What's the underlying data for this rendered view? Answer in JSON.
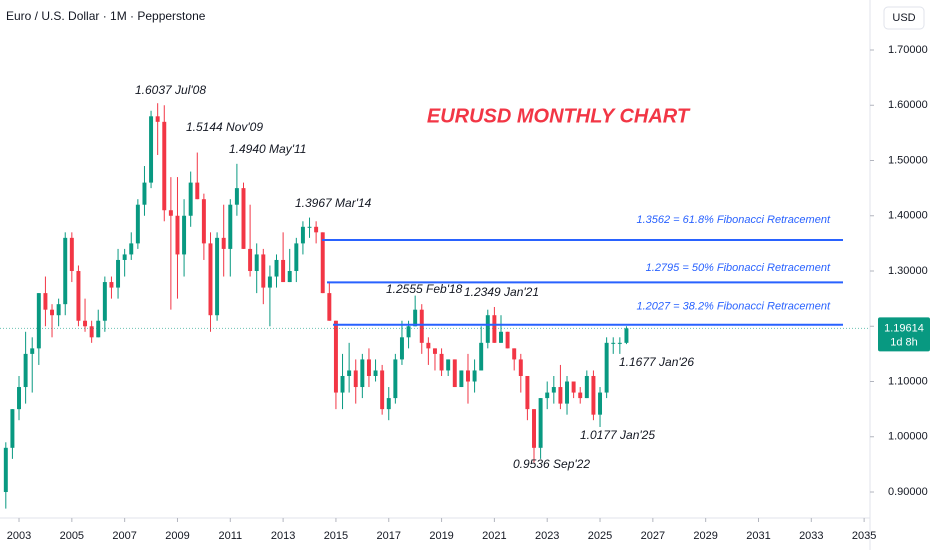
{
  "chart_data": {
    "type": "candlestick",
    "title": "Euro / U.S. Dollar · 1M · Pepperstone",
    "currency": "USD",
    "chart_title": "EURUSD MONTHLY CHART",
    "up_color": "#089981",
    "down_color": "#f23645",
    "fib_color": "#2962ff",
    "x": [
      2002.5,
      2002.75,
      2003,
      2003.25,
      2003.5,
      2003.75,
      2004,
      2004.25,
      2004.5,
      2004.75,
      2005,
      2005.25,
      2005.5,
      2005.75,
      2006,
      2006.25,
      2006.5,
      2006.75,
      2007,
      2007.25,
      2007.5,
      2007.75,
      2008,
      2008.25,
      2008.5,
      2008.75,
      2009,
      2009.25,
      2009.5,
      2009.75,
      2010,
      2010.25,
      2010.5,
      2010.75,
      2011,
      2011.25,
      2011.5,
      2011.75,
      2012,
      2012.25,
      2012.5,
      2012.75,
      2013,
      2013.25,
      2013.5,
      2013.75,
      2014,
      2014.25,
      2014.5,
      2014.75,
      2015,
      2015.25,
      2015.5,
      2015.75,
      2016,
      2016.25,
      2016.5,
      2016.75,
      2017,
      2017.25,
      2017.5,
      2017.75,
      2018,
      2018.25,
      2018.5,
      2018.75,
      2019,
      2019.25,
      2019.5,
      2019.75,
      2020,
      2020.25,
      2020.5,
      2020.75,
      2021,
      2021.25,
      2021.5,
      2021.75,
      2022,
      2022.25,
      2022.5,
      2022.75,
      2023,
      2023.25,
      2023.5,
      2023.75,
      2024,
      2024.25,
      2024.5,
      2024.75,
      2025,
      2025.25,
      2025.5,
      2025.75,
      2026
    ],
    "open": [
      0.9,
      0.98,
      1.05,
      1.09,
      1.15,
      1.16,
      1.26,
      1.23,
      1.22,
      1.24,
      1.36,
      1.3,
      1.21,
      1.2,
      1.18,
      1.21,
      1.28,
      1.27,
      1.32,
      1.33,
      1.35,
      1.42,
      1.46,
      1.58,
      1.57,
      1.41,
      1.4,
      1.33,
      1.4,
      1.46,
      1.43,
      1.35,
      1.22,
      1.36,
      1.34,
      1.42,
      1.45,
      1.34,
      1.3,
      1.33,
      1.27,
      1.29,
      1.32,
      1.28,
      1.3,
      1.35,
      1.38,
      1.38,
      1.37,
      1.26,
      1.21,
      1.08,
      1.11,
      1.12,
      1.09,
      1.14,
      1.11,
      1.12,
      1.05,
      1.07,
      1.14,
      1.18,
      1.2,
      1.23,
      1.17,
      1.16,
      1.15,
      1.12,
      1.14,
      1.09,
      1.12,
      1.1,
      1.12,
      1.17,
      1.22,
      1.17,
      1.19,
      1.16,
      1.14,
      1.11,
      1.05,
      0.98,
      1.07,
      1.08,
      1.09,
      1.06,
      1.1,
      1.08,
      1.07,
      1.11,
      1.04,
      1.08,
      1.17,
      1.17,
      1.17
    ],
    "high": [
      0.99,
      1.05,
      1.11,
      1.19,
      1.18,
      1.26,
      1.29,
      1.24,
      1.25,
      1.37,
      1.37,
      1.31,
      1.25,
      1.21,
      1.23,
      1.29,
      1.29,
      1.34,
      1.34,
      1.37,
      1.43,
      1.49,
      1.59,
      1.6037,
      1.6,
      1.47,
      1.47,
      1.43,
      1.48,
      1.5144,
      1.44,
      1.37,
      1.37,
      1.42,
      1.43,
      1.494,
      1.46,
      1.42,
      1.35,
      1.34,
      1.31,
      1.33,
      1.37,
      1.34,
      1.36,
      1.39,
      1.3967,
      1.39,
      1.37,
      1.28,
      1.21,
      1.15,
      1.17,
      1.14,
      1.15,
      1.16,
      1.14,
      1.13,
      1.09,
      1.15,
      1.21,
      1.21,
      1.2555,
      1.24,
      1.18,
      1.16,
      1.16,
      1.14,
      1.14,
      1.12,
      1.15,
      1.14,
      1.2,
      1.23,
      1.2349,
      1.22,
      1.19,
      1.16,
      1.15,
      1.11,
      1.05,
      1.07,
      1.1,
      1.11,
      1.13,
      1.11,
      1.1,
      1.09,
      1.12,
      1.12,
      1.09,
      1.18,
      1.18,
      1.18,
      1.2
    ],
    "low": [
      0.87,
      0.96,
      1.03,
      1.06,
      1.08,
      1.13,
      1.2,
      1.18,
      1.2,
      1.22,
      1.28,
      1.2,
      1.19,
      1.17,
      1.18,
      1.19,
      1.25,
      1.25,
      1.29,
      1.32,
      1.34,
      1.4,
      1.45,
      1.51,
      1.39,
      1.23,
      1.25,
      1.29,
      1.38,
      1.43,
      1.32,
      1.19,
      1.21,
      1.29,
      1.29,
      1.4,
      1.34,
      1.29,
      1.26,
      1.24,
      1.2,
      1.27,
      1.28,
      1.28,
      1.28,
      1.33,
      1.36,
      1.35,
      1.26,
      1.21,
      1.05,
      1.05,
      1.08,
      1.06,
      1.07,
      1.09,
      1.1,
      1.04,
      1.03,
      1.06,
      1.13,
      1.16,
      1.2,
      1.15,
      1.13,
      1.12,
      1.11,
      1.11,
      1.09,
      1.09,
      1.06,
      1.08,
      1.12,
      1.16,
      1.17,
      1.17,
      1.16,
      1.12,
      1.08,
      1.03,
      0.9536,
      0.96,
      1.05,
      1.06,
      1.05,
      1.04,
      1.07,
      1.06,
      1.07,
      1.03,
      1.0177,
      1.07,
      1.15,
      1.15,
      1.1677
    ],
    "close": [
      0.98,
      1.05,
      1.09,
      1.15,
      1.16,
      1.26,
      1.23,
      1.22,
      1.24,
      1.36,
      1.3,
      1.21,
      1.2,
      1.18,
      1.21,
      1.28,
      1.27,
      1.32,
      1.33,
      1.35,
      1.42,
      1.46,
      1.58,
      1.57,
      1.41,
      1.4,
      1.33,
      1.4,
      1.46,
      1.43,
      1.35,
      1.22,
      1.36,
      1.34,
      1.42,
      1.45,
      1.34,
      1.3,
      1.33,
      1.27,
      1.29,
      1.32,
      1.28,
      1.3,
      1.35,
      1.38,
      1.38,
      1.37,
      1.26,
      1.21,
      1.08,
      1.11,
      1.12,
      1.09,
      1.14,
      1.11,
      1.12,
      1.05,
      1.07,
      1.14,
      1.18,
      1.2,
      1.23,
      1.17,
      1.16,
      1.15,
      1.12,
      1.14,
      1.09,
      1.12,
      1.1,
      1.12,
      1.17,
      1.22,
      1.17,
      1.19,
      1.16,
      1.14,
      1.11,
      1.05,
      0.98,
      1.07,
      1.08,
      1.09,
      1.06,
      1.1,
      1.08,
      1.07,
      1.11,
      1.04,
      1.08,
      1.17,
      1.17,
      1.17,
      1.19614
    ],
    "countdown": "1d 8h",
    "xlim": [
      2002.28,
      2034.2
    ],
    "ylim": [
      0.8584,
      1.7905
    ],
    "xticks": [
      2003,
      2005,
      2007,
      2009,
      2011,
      2013,
      2015,
      2017,
      2019,
      2021,
      2023,
      2025,
      2027,
      2029,
      2031,
      2033,
      2035
    ],
    "yticks": [
      {
        "value": 0.9,
        "label": "0.90000"
      },
      {
        "value": 1.0,
        "label": "1.00000"
      },
      {
        "value": 1.1,
        "label": "1.10000"
      },
      {
        "value": 1.2,
        "label": "1.20000"
      },
      {
        "value": 1.3,
        "label": "1.30000"
      },
      {
        "value": 1.4,
        "label": "1.40000"
      },
      {
        "value": 1.5,
        "label": "1.50000"
      },
      {
        "value": 1.6,
        "label": "1.60000"
      },
      {
        "value": 1.7,
        "label": "1.70000"
      }
    ],
    "fib_levels": [
      {
        "value": 1.3562,
        "label": "1.3562 = 61.8% Fibonacci Retracement"
      },
      {
        "value": 1.2795,
        "label": "1.2795 = 50% Fibonacci Retracement"
      },
      {
        "value": 1.2027,
        "label": "1.2027 = 38.2% Fibonacci Retracement"
      }
    ],
    "annotations": [
      "1.6037 Jul'08",
      "1.5144 Nov'09",
      "1.4940 May'11",
      "1.3967 Mar'14",
      "1.2555 Feb'18",
      "1.2349 Jan'21",
      "1.1677 Jan'26",
      "1.0177 Jan'25",
      "0.9536 Sep'22"
    ]
  }
}
